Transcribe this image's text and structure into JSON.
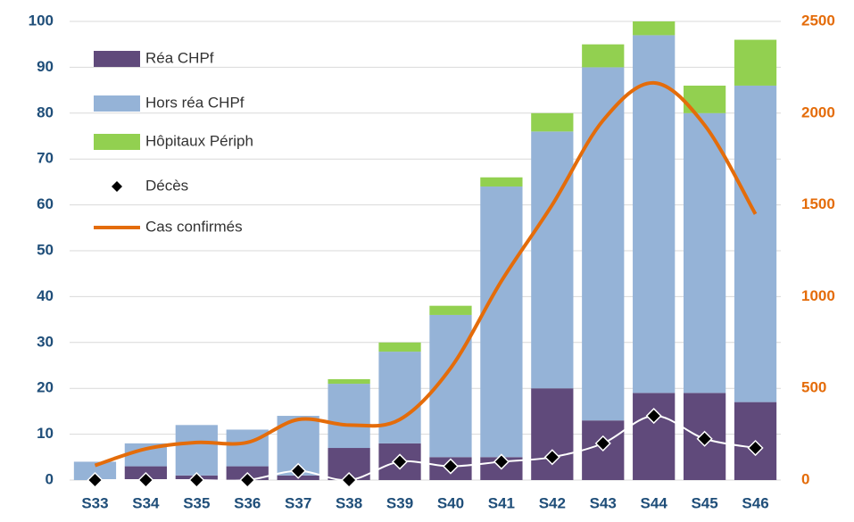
{
  "chart_data": {
    "type": "bar",
    "categories": [
      "S33",
      "S34",
      "S35",
      "S36",
      "S37",
      "S38",
      "S39",
      "S40",
      "S41",
      "S42",
      "S43",
      "S44",
      "S45",
      "S46"
    ],
    "series": [
      {
        "name": "Réa CHPf",
        "type": "bar",
        "color": "#604a7b",
        "values": [
          0,
          3,
          1,
          3,
          1,
          7,
          8,
          5,
          5,
          20,
          13,
          19,
          19,
          17
        ]
      },
      {
        "name": "Hors réa CHPf",
        "type": "bar",
        "color": "#95b3d7",
        "values": [
          4,
          5,
          11,
          8,
          13,
          14,
          20,
          31,
          59,
          56,
          77,
          78,
          61,
          69
        ]
      },
      {
        "name": "Hôpitaux Périph",
        "type": "bar",
        "color": "#92d050",
        "values": [
          0,
          0,
          0,
          0,
          0,
          1,
          2,
          2,
          2,
          4,
          5,
          3,
          6,
          10
        ]
      },
      {
        "name": "Décès",
        "type": "scatter",
        "color": "#000000",
        "line_color": "#ffffff",
        "values": [
          0,
          0,
          0,
          0,
          2,
          0,
          4,
          3,
          4,
          5,
          8,
          14,
          9,
          7
        ]
      },
      {
        "name": "Cas confirmés",
        "type": "line",
        "axis": "y2",
        "color": "#e46c0a",
        "values": [
          80,
          170,
          205,
          205,
          330,
          300,
          330,
          610,
          1085,
          1500,
          1960,
          2165,
          1935,
          1450
        ]
      }
    ],
    "ylim": [
      0,
      100
    ],
    "yticks": [
      0,
      10,
      20,
      30,
      40,
      50,
      60,
      70,
      80,
      90,
      100
    ],
    "y2lim": [
      0,
      2500
    ],
    "y2ticks": [
      0,
      500,
      1000,
      1500,
      2000,
      2500
    ],
    "grid": true,
    "legend": "top-left"
  }
}
